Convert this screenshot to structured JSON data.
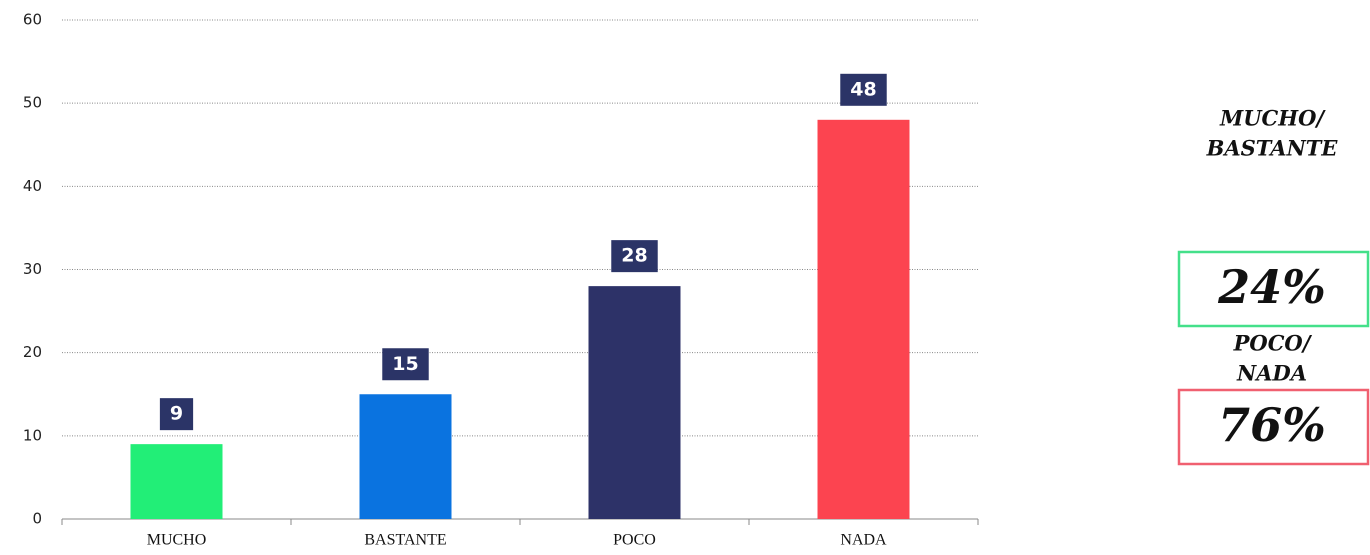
{
  "chart_data": {
    "type": "bar",
    "categories": [
      "MUCHO",
      "BASTANTE",
      "POCO",
      "NADA"
    ],
    "values": [
      9,
      15,
      28,
      48
    ],
    "colors": [
      "#22ee77",
      "#0a73e0",
      "#2d3268",
      "#fc4450"
    ],
    "label_box_color": "#2b3467",
    "ylim": [
      0,
      60
    ],
    "yticks": [
      0,
      10,
      20,
      30,
      40,
      50,
      60
    ],
    "grid": true,
    "annotations": [
      {
        "lines": [
          "MUCHO/",
          "BASTANTE"
        ],
        "value": 24,
        "value_label": "24%",
        "color": "#44e08a"
      },
      {
        "lines": [
          "POCO/",
          "NADA"
        ],
        "value": 76,
        "value_label": "76%",
        "color": "#f06070"
      }
    ]
  }
}
